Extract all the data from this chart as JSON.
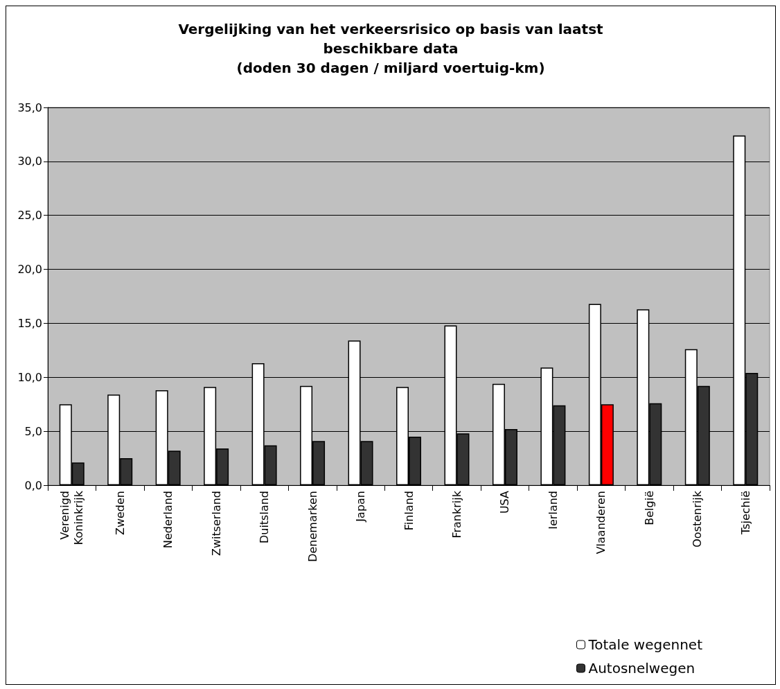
{
  "chart_data": {
    "type": "bar",
    "title": "Vergelijking van het verkeersrisico op basis van laatst\nbeschikbare data\n(doden 30 dagen / miljard voertuig-km)",
    "categories": [
      "Verenigd\nKoninkrijk",
      "Zweden",
      "Nederland",
      "Zwitserland",
      "Duitsland",
      "Denemarken",
      "Japan",
      "Finland",
      "Frankrijk",
      "USA",
      "Ierland",
      "Vlaanderen",
      "België",
      "Oostenrijk",
      "Tsjechië"
    ],
    "series": [
      {
        "name": "Totale wegennet",
        "color": "#ffffff",
        "values": [
          7.5,
          8.4,
          8.8,
          9.1,
          11.3,
          9.2,
          13.4,
          9.1,
          14.8,
          9.4,
          10.9,
          16.8,
          16.3,
          12.6,
          32.4
        ]
      },
      {
        "name": "Autosnelwegen",
        "color": "#333333",
        "colors": [
          "#333333",
          "#333333",
          "#333333",
          "#333333",
          "#333333",
          "#333333",
          "#333333",
          "#333333",
          "#333333",
          "#333333",
          "#333333",
          "#ff0000",
          "#333333",
          "#333333",
          "#333333"
        ],
        "values": [
          2.1,
          2.5,
          3.2,
          3.4,
          3.7,
          4.1,
          4.1,
          4.5,
          4.8,
          5.2,
          7.4,
          7.5,
          7.6,
          9.2,
          10.4
        ]
      }
    ],
    "ylim": [
      0,
      35
    ],
    "yticks": [
      {
        "value": 0,
        "label": "0,0"
      },
      {
        "value": 5,
        "label": "5,0"
      },
      {
        "value": 10,
        "label": "10,0"
      },
      {
        "value": 15,
        "label": "15,0"
      },
      {
        "value": 20,
        "label": "20,0"
      },
      {
        "value": 25,
        "label": "25,0"
      },
      {
        "value": 30,
        "label": "30,0"
      },
      {
        "value": 35,
        "label": "35,0"
      }
    ],
    "grid": "y",
    "legend": "bottom right"
  }
}
